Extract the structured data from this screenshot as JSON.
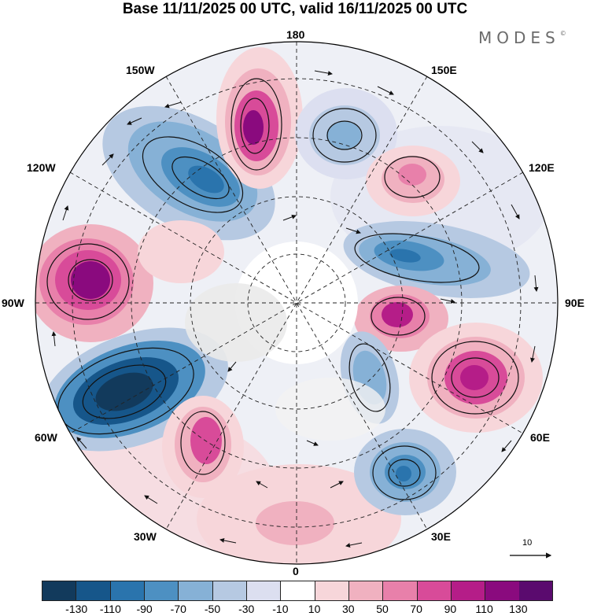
{
  "title": "Base 11/11/2025 00 UTC, valid 16/11/2025 00 UTC",
  "logo": "MODES",
  "logo_mark": "©",
  "longitude_labels": {
    "n180": "180",
    "w150": "150W",
    "e150": "150E",
    "w120": "120W",
    "e120": "120E",
    "w90": "90W",
    "e90": "90E",
    "w60": "60W",
    "e60": "60E",
    "w30": "30W",
    "e30": "30E",
    "s0": "0"
  },
  "reference_vector_label": "10",
  "colorbar": {
    "ticks": [
      "-130",
      "-110",
      "-90",
      "-70",
      "-50",
      "-30",
      "-10",
      "10",
      "30",
      "50",
      "70",
      "90",
      "110",
      "130"
    ],
    "colors": [
      "#123a5c",
      "#16568a",
      "#2a74ad",
      "#4d90c2",
      "#86b1d6",
      "#b6c9e2",
      "#dcdff0",
      "#ffffff",
      "#f7d6da",
      "#f0b1c0",
      "#e880aa",
      "#d84b99",
      "#b51d88",
      "#8a0a7e",
      "#5a0a6e"
    ]
  },
  "anomaly_centers": [
    {
      "name": "ne-pacific-low",
      "value": -90
    },
    {
      "name": "bering-high",
      "value": 110
    },
    {
      "name": "east-siberia-low",
      "value": -70
    },
    {
      "name": "yakutia-high",
      "value": 70
    },
    {
      "name": "canada-high",
      "value": 130
    },
    {
      "name": "north-atlantic-low",
      "value": -130
    },
    {
      "name": "atlantic-high",
      "value": 90
    },
    {
      "name": "west-siberia-low",
      "value": -90
    },
    {
      "name": "kara-high",
      "value": 90
    },
    {
      "name": "central-asia-high",
      "value": 110
    },
    {
      "name": "ural-low",
      "value": -50
    },
    {
      "name": "black-sea-low",
      "value": -90
    },
    {
      "name": "iberia-high",
      "value": 30
    }
  ]
}
